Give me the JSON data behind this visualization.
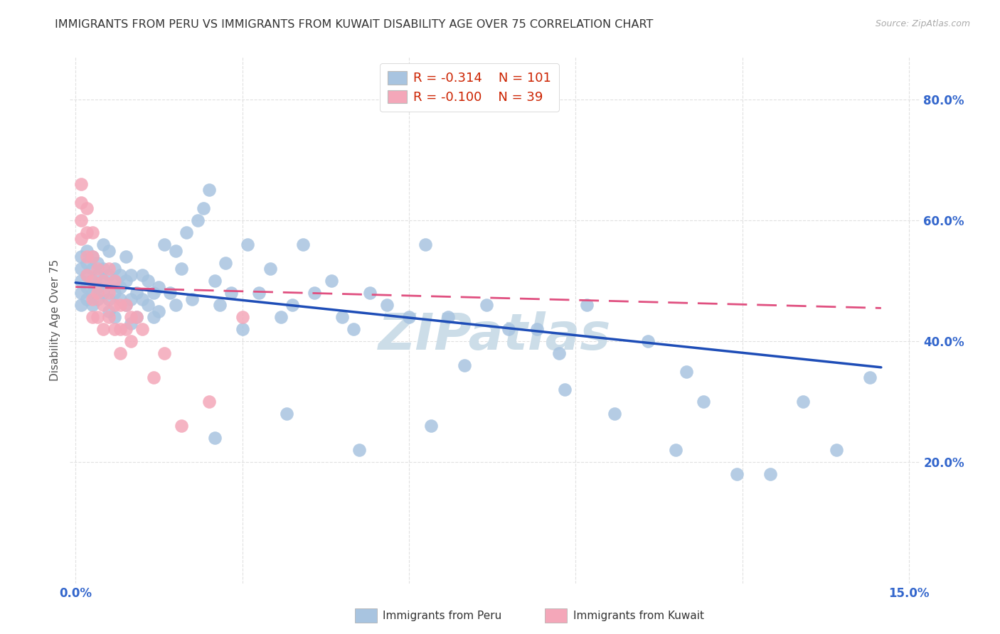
{
  "title": "IMMIGRANTS FROM PERU VS IMMIGRANTS FROM KUWAIT DISABILITY AGE OVER 75 CORRELATION CHART",
  "source": "Source: ZipAtlas.com",
  "ylabel": "Disability Age Over 75",
  "xlim": [
    -0.001,
    0.152
  ],
  "ylim": [
    0.0,
    0.87
  ],
  "yticks": [
    0.2,
    0.4,
    0.6,
    0.8
  ],
  "ytick_labels": [
    "20.0%",
    "40.0%",
    "60.0%",
    "80.0%"
  ],
  "xticks": [
    0.0,
    0.03,
    0.06,
    0.09,
    0.12,
    0.15
  ],
  "xtick_show": [
    "0.0%",
    "",
    "",
    "",
    "",
    "15.0%"
  ],
  "legend_peru_R": "-0.314",
  "legend_peru_N": "101",
  "legend_kuwait_R": "-0.100",
  "legend_kuwait_N": "39",
  "peru_color": "#a8c4e0",
  "kuwait_color": "#f4a7b9",
  "peru_line_color": "#1e4db7",
  "kuwait_line_color": "#e05080",
  "title_color": "#333333",
  "source_color": "#aaaaaa",
  "tick_color": "#3366cc",
  "ylabel_color": "#555555",
  "grid_color": "#dddddd",
  "background_color": "#ffffff",
  "watermark_text": "ZIPatlas",
  "watermark_color": "#ccdde8",
  "legend_text_color": "#cc2200",
  "legend_label_color": "#333333",
  "bottom_legend_color": "#333333",
  "peru_scatter_x": [
    0.001,
    0.001,
    0.001,
    0.001,
    0.001,
    0.002,
    0.002,
    0.002,
    0.002,
    0.002,
    0.003,
    0.003,
    0.003,
    0.003,
    0.003,
    0.004,
    0.004,
    0.004,
    0.004,
    0.005,
    0.005,
    0.005,
    0.005,
    0.006,
    0.006,
    0.006,
    0.006,
    0.007,
    0.007,
    0.007,
    0.007,
    0.008,
    0.008,
    0.008,
    0.009,
    0.009,
    0.009,
    0.01,
    0.01,
    0.01,
    0.011,
    0.011,
    0.012,
    0.012,
    0.013,
    0.013,
    0.014,
    0.014,
    0.015,
    0.015,
    0.016,
    0.017,
    0.018,
    0.018,
    0.019,
    0.02,
    0.021,
    0.022,
    0.023,
    0.024,
    0.025,
    0.026,
    0.027,
    0.028,
    0.03,
    0.031,
    0.033,
    0.035,
    0.037,
    0.039,
    0.041,
    0.043,
    0.046,
    0.048,
    0.05,
    0.053,
    0.056,
    0.06,
    0.063,
    0.067,
    0.07,
    0.074,
    0.078,
    0.083,
    0.087,
    0.092,
    0.097,
    0.103,
    0.108,
    0.113,
    0.119,
    0.125,
    0.131,
    0.137,
    0.11,
    0.088,
    0.064,
    0.051,
    0.038,
    0.025,
    0.143
  ],
  "peru_scatter_y": [
    0.5,
    0.48,
    0.52,
    0.46,
    0.54,
    0.49,
    0.51,
    0.53,
    0.47,
    0.55,
    0.5,
    0.48,
    0.52,
    0.46,
    0.54,
    0.49,
    0.51,
    0.47,
    0.53,
    0.5,
    0.48,
    0.52,
    0.56,
    0.47,
    0.51,
    0.55,
    0.45,
    0.5,
    0.48,
    0.52,
    0.44,
    0.49,
    0.47,
    0.51,
    0.46,
    0.5,
    0.54,
    0.47,
    0.51,
    0.43,
    0.48,
    0.44,
    0.47,
    0.51,
    0.46,
    0.5,
    0.44,
    0.48,
    0.45,
    0.49,
    0.56,
    0.48,
    0.55,
    0.46,
    0.52,
    0.58,
    0.47,
    0.6,
    0.62,
    0.65,
    0.5,
    0.46,
    0.53,
    0.48,
    0.42,
    0.56,
    0.48,
    0.52,
    0.44,
    0.46,
    0.56,
    0.48,
    0.5,
    0.44,
    0.42,
    0.48,
    0.46,
    0.44,
    0.56,
    0.44,
    0.36,
    0.46,
    0.42,
    0.42,
    0.38,
    0.46,
    0.28,
    0.4,
    0.22,
    0.3,
    0.18,
    0.18,
    0.3,
    0.22,
    0.35,
    0.32,
    0.26,
    0.22,
    0.28,
    0.24,
    0.34
  ],
  "kuwait_scatter_x": [
    0.001,
    0.001,
    0.001,
    0.001,
    0.002,
    0.002,
    0.002,
    0.002,
    0.003,
    0.003,
    0.003,
    0.003,
    0.003,
    0.004,
    0.004,
    0.004,
    0.005,
    0.005,
    0.005,
    0.006,
    0.006,
    0.006,
    0.007,
    0.007,
    0.007,
    0.008,
    0.008,
    0.008,
    0.009,
    0.009,
    0.01,
    0.01,
    0.011,
    0.012,
    0.014,
    0.016,
    0.019,
    0.024,
    0.03
  ],
  "kuwait_scatter_y": [
    0.66,
    0.63,
    0.6,
    0.57,
    0.62,
    0.58,
    0.54,
    0.51,
    0.58,
    0.54,
    0.5,
    0.47,
    0.44,
    0.52,
    0.48,
    0.44,
    0.5,
    0.46,
    0.42,
    0.52,
    0.48,
    0.44,
    0.5,
    0.46,
    0.42,
    0.46,
    0.42,
    0.38,
    0.46,
    0.42,
    0.44,
    0.4,
    0.44,
    0.42,
    0.34,
    0.38,
    0.26,
    0.3,
    0.44
  ],
  "peru_line_x0": 0.0,
  "peru_line_x1": 0.145,
  "peru_line_y0": 0.497,
  "peru_line_y1": 0.357,
  "kuwait_line_x0": 0.0,
  "kuwait_line_x1": 0.145,
  "kuwait_line_y0": 0.49,
  "kuwait_line_y1": 0.455
}
